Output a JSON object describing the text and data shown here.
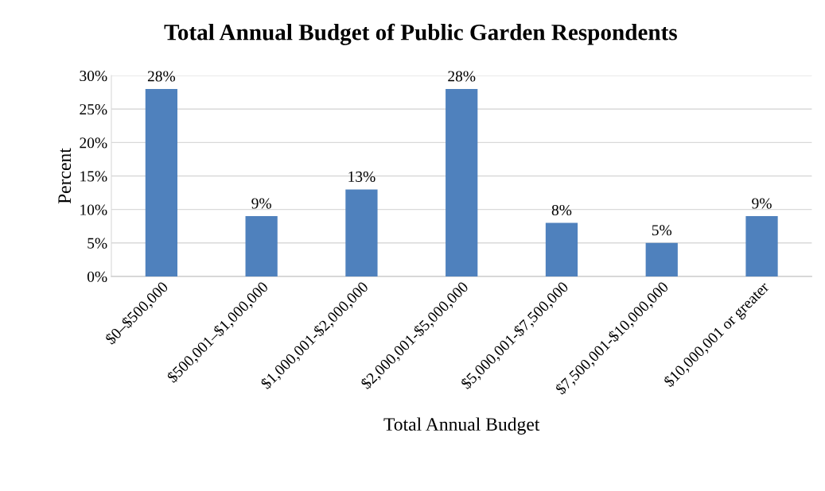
{
  "chart_data": {
    "type": "bar",
    "title": "Total Annual Budget of Public Garden Respondents",
    "xlabel": "Total Annual Budget",
    "ylabel": "Percent",
    "categories": [
      "$0–$500,000",
      "$500,001–$1,000,000",
      "$1,000,001-$2,000,000",
      "$2,000,001-$5,000,000",
      "$5,000,001-$7,500,000",
      "$7,500,001-$10,000,000",
      "$10,000,001 or greater"
    ],
    "values": [
      28,
      9,
      13,
      28,
      8,
      5,
      9
    ],
    "value_labels": [
      "28%",
      "9%",
      "13%",
      "28%",
      "8%",
      "5%",
      "9%"
    ],
    "color": "#4f81bd",
    "ylim": [
      0,
      30
    ],
    "yticks": [
      {
        "value": 0,
        "label": "0%"
      },
      {
        "value": 5,
        "label": "5%"
      },
      {
        "value": 10,
        "label": "10%"
      },
      {
        "value": 15,
        "label": "15%"
      },
      {
        "value": 20,
        "label": "20%"
      },
      {
        "value": 25,
        "label": "25%"
      },
      {
        "value": 30,
        "label": "30%"
      }
    ],
    "grid": "y"
  }
}
